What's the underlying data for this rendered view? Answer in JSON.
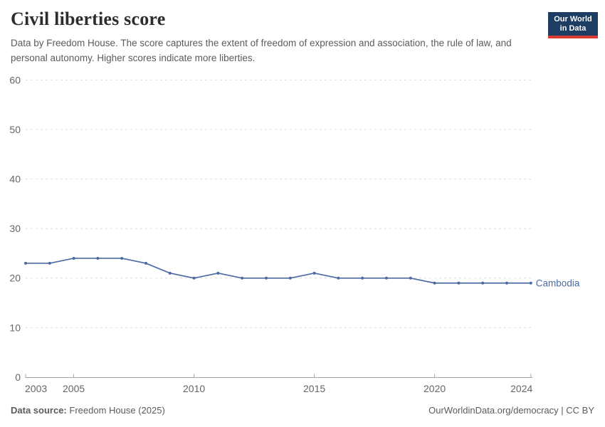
{
  "header": {
    "title": "Civil liberties score",
    "subtitle": "Data by Freedom House. The score captures the extent of freedom of expression and association, the rule of law, and personal autonomy. Higher scores indicate more liberties.",
    "logo": {
      "line1": "Our World",
      "line2": "in Data"
    }
  },
  "chart_data": {
    "type": "line",
    "title": "Civil liberties score",
    "x": [
      2003,
      2004,
      2005,
      2006,
      2007,
      2008,
      2009,
      2010,
      2011,
      2012,
      2013,
      2014,
      2015,
      2016,
      2017,
      2018,
      2019,
      2020,
      2021,
      2022,
      2023,
      2024
    ],
    "series": [
      {
        "name": "Cambodia",
        "color": "#4c6ba3",
        "values": [
          23,
          23,
          24,
          24,
          24,
          23,
          21,
          20,
          21,
          20,
          20,
          20,
          21,
          20,
          20,
          20,
          20,
          19,
          19,
          19,
          19,
          19
        ]
      }
    ],
    "xlabel": "",
    "ylabel": "",
    "ylim": [
      0,
      60
    ],
    "yticks": [
      0,
      10,
      20,
      30,
      40,
      50,
      60
    ],
    "xticks": [
      2003,
      2005,
      2010,
      2015,
      2020,
      2024
    ],
    "grid": "horizontal-dashed",
    "legend_position": "end-of-line-label",
    "marker": "dot"
  },
  "footer": {
    "source_label": "Data source:",
    "source_value": "Freedom House (2025)",
    "credit": "OurWorldinData.org/democracy | CC BY"
  },
  "colors": {
    "series_blue": "#4c6ba3",
    "grid_gray": "#dcdcdc",
    "axis_gray": "#a5a5a5",
    "tick_text_gray": "#666666",
    "title_dark": "#2d2d2d",
    "subtitle_gray": "#5b5b5b",
    "logo_navy": "#1d3d63",
    "logo_red": "#d93a34"
  }
}
